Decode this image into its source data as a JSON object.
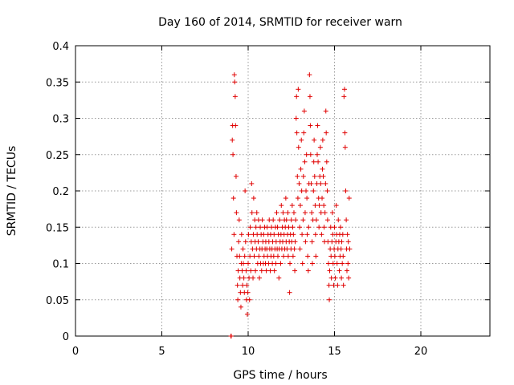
{
  "chart_data": {
    "type": "scatter",
    "title": "Day 160 of 2014, SRMTID for receiver warn",
    "xlabel": "GPS time / hours",
    "ylabel": "SRMTID / TECUs",
    "xlim": [
      0,
      24
    ],
    "ylim": [
      0,
      0.4
    ],
    "xticks": [
      0,
      5,
      10,
      15,
      20
    ],
    "yticks": [
      0,
      0.05,
      0.1,
      0.15,
      0.2,
      0.25,
      0.3,
      0.35,
      0.4
    ],
    "grid": true,
    "legend": "none",
    "marker": "+",
    "color": "#e00000",
    "series": [
      {
        "name": "SRMTID",
        "points": [
          [
            9.0,
            0.0
          ],
          [
            9.02,
            0.0
          ],
          [
            9.05,
            0.12
          ],
          [
            9.08,
            0.27
          ],
          [
            9.1,
            0.29
          ],
          [
            9.12,
            0.25
          ],
          [
            9.15,
            0.19
          ],
          [
            9.18,
            0.14
          ],
          [
            9.2,
            0.36
          ],
          [
            9.22,
            0.35
          ],
          [
            9.25,
            0.33
          ],
          [
            9.27,
            0.29
          ],
          [
            9.3,
            0.22
          ],
          [
            9.32,
            0.17
          ],
          [
            9.35,
            0.11
          ],
          [
            9.38,
            0.07
          ],
          [
            9.4,
            0.05
          ],
          [
            9.42,
            0.09
          ],
          [
            9.45,
            0.13
          ],
          [
            9.48,
            0.16
          ],
          [
            9.5,
            0.11
          ],
          [
            9.52,
            0.08
          ],
          [
            9.55,
            0.06
          ],
          [
            9.58,
            0.04
          ],
          [
            9.6,
            0.1
          ],
          [
            9.62,
            0.14
          ],
          [
            9.65,
            0.09
          ],
          [
            9.68,
            0.07
          ],
          [
            9.7,
            0.12
          ],
          [
            9.72,
            0.1
          ],
          [
            9.75,
            0.08
          ],
          [
            9.78,
            0.06
          ],
          [
            9.8,
            0.11
          ],
          [
            9.82,
            0.2
          ],
          [
            9.85,
            0.13
          ],
          [
            9.88,
            0.09
          ],
          [
            9.9,
            0.05
          ],
          [
            9.92,
            0.07
          ],
          [
            9.95,
            0.03
          ],
          [
            9.98,
            0.06
          ],
          [
            10.0,
            0.1
          ],
          [
            10.02,
            0.14
          ],
          [
            10.05,
            0.08
          ],
          [
            10.08,
            0.05
          ],
          [
            10.1,
            0.11
          ],
          [
            10.12,
            0.15
          ],
          [
            10.15,
            0.09
          ],
          [
            10.18,
            0.13
          ],
          [
            10.2,
            0.21
          ],
          [
            10.22,
            0.17
          ],
          [
            10.25,
            0.12
          ],
          [
            10.28,
            0.08
          ],
          [
            10.3,
            0.14
          ],
          [
            10.32,
            0.19
          ],
          [
            10.35,
            0.11
          ],
          [
            10.38,
            0.16
          ],
          [
            10.4,
            0.13
          ],
          [
            10.42,
            0.09
          ],
          [
            10.45,
            0.15
          ],
          [
            10.48,
            0.12
          ],
          [
            10.5,
            0.17
          ],
          [
            10.52,
            0.14
          ],
          [
            10.55,
            0.1
          ],
          [
            10.58,
            0.13
          ],
          [
            10.6,
            0.16
          ],
          [
            10.62,
            0.11
          ],
          [
            10.65,
            0.08
          ],
          [
            10.68,
            0.12
          ],
          [
            10.7,
            0.15
          ],
          [
            10.72,
            0.1
          ],
          [
            10.75,
            0.14
          ],
          [
            10.78,
            0.09
          ],
          [
            10.8,
            0.12
          ],
          [
            10.82,
            0.16
          ],
          [
            10.85,
            0.13
          ],
          [
            10.88,
            0.1
          ],
          [
            10.9,
            0.14
          ],
          [
            10.92,
            0.11
          ],
          [
            10.95,
            0.15
          ],
          [
            10.98,
            0.12
          ],
          [
            11.0,
            0.1
          ],
          [
            11.02,
            0.13
          ],
          [
            11.05,
            0.09
          ],
          [
            11.08,
            0.12
          ],
          [
            11.1,
            0.15
          ],
          [
            11.12,
            0.11
          ],
          [
            11.15,
            0.14
          ],
          [
            11.18,
            0.1
          ],
          [
            11.2,
            0.13
          ],
          [
            11.22,
            0.16
          ],
          [
            11.25,
            0.12
          ],
          [
            11.28,
            0.09
          ],
          [
            11.3,
            0.14
          ],
          [
            11.32,
            0.11
          ],
          [
            11.35,
            0.15
          ],
          [
            11.38,
            0.12
          ],
          [
            11.4,
            0.1
          ],
          [
            11.42,
            0.13
          ],
          [
            11.45,
            0.16
          ],
          [
            11.48,
            0.11
          ],
          [
            11.5,
            0.14
          ],
          [
            11.52,
            0.09
          ],
          [
            11.55,
            0.12
          ],
          [
            11.58,
            0.15
          ],
          [
            11.6,
            0.1
          ],
          [
            11.62,
            0.13
          ],
          [
            11.65,
            0.17
          ],
          [
            11.68,
            0.12
          ],
          [
            11.7,
            0.15
          ],
          [
            11.72,
            0.11
          ],
          [
            11.75,
            0.14
          ],
          [
            11.78,
            0.08
          ],
          [
            11.8,
            0.12
          ],
          [
            11.82,
            0.16
          ],
          [
            11.85,
            0.13
          ],
          [
            11.88,
            0.1
          ],
          [
            11.9,
            0.14
          ],
          [
            11.92,
            0.18
          ],
          [
            11.95,
            0.12
          ],
          [
            11.98,
            0.15
          ],
          [
            12.0,
            0.13
          ],
          [
            12.02,
            0.17
          ],
          [
            12.05,
            0.11
          ],
          [
            12.08,
            0.14
          ],
          [
            12.1,
            0.16
          ],
          [
            12.12,
            0.12
          ],
          [
            12.15,
            0.15
          ],
          [
            12.18,
            0.19
          ],
          [
            12.2,
            0.13
          ],
          [
            12.22,
            0.16
          ],
          [
            12.25,
            0.12
          ],
          [
            12.28,
            0.14
          ],
          [
            12.3,
            0.17
          ],
          [
            12.32,
            0.11
          ],
          [
            12.35,
            0.15
          ],
          [
            12.38,
            0.13
          ],
          [
            12.4,
            0.06
          ],
          [
            12.42,
            0.1
          ],
          [
            12.45,
            0.14
          ],
          [
            12.48,
            0.12
          ],
          [
            12.5,
            0.16
          ],
          [
            12.52,
            0.13
          ],
          [
            12.55,
            0.18
          ],
          [
            12.58,
            0.15
          ],
          [
            12.6,
            0.11
          ],
          [
            12.62,
            0.14
          ],
          [
            12.65,
            0.17
          ],
          [
            12.68,
            0.12
          ],
          [
            12.7,
            0.09
          ],
          [
            12.72,
            0.13
          ],
          [
            12.75,
            0.16
          ],
          [
            12.78,
            0.3
          ],
          [
            12.8,
            0.33
          ],
          [
            12.82,
            0.28
          ],
          [
            12.85,
            0.22
          ],
          [
            12.88,
            0.19
          ],
          [
            12.9,
            0.34
          ],
          [
            12.92,
            0.26
          ],
          [
            12.95,
            0.21
          ],
          [
            12.98,
            0.15
          ],
          [
            13.0,
            0.12
          ],
          [
            13.02,
            0.18
          ],
          [
            13.05,
            0.23
          ],
          [
            13.08,
            0.27
          ],
          [
            13.1,
            0.2
          ],
          [
            13.12,
            0.14
          ],
          [
            13.15,
            0.1
          ],
          [
            13.18,
            0.16
          ],
          [
            13.2,
            0.22
          ],
          [
            13.22,
            0.28
          ],
          [
            13.25,
            0.31
          ],
          [
            13.28,
            0.24
          ],
          [
            13.3,
            0.17
          ],
          [
            13.32,
            0.13
          ],
          [
            13.35,
            0.2
          ],
          [
            13.38,
            0.25
          ],
          [
            13.4,
            0.19
          ],
          [
            13.42,
            0.14
          ],
          [
            13.45,
            0.11
          ],
          [
            13.48,
            0.09
          ],
          [
            13.5,
            0.15
          ],
          [
            13.52,
            0.21
          ],
          [
            13.55,
            0.36
          ],
          [
            13.58,
            0.33
          ],
          [
            13.6,
            0.29
          ],
          [
            13.62,
            0.25
          ],
          [
            13.65,
            0.21
          ],
          [
            13.68,
            0.17
          ],
          [
            13.7,
            0.13
          ],
          [
            13.72,
            0.1
          ],
          [
            13.75,
            0.16
          ],
          [
            13.78,
            0.2
          ],
          [
            13.8,
            0.24
          ],
          [
            13.82,
            0.27
          ],
          [
            13.85,
            0.22
          ],
          [
            13.88,
            0.18
          ],
          [
            13.9,
            0.14
          ],
          [
            13.92,
            0.11
          ],
          [
            13.95,
            0.16
          ],
          [
            13.98,
            0.21
          ],
          [
            14.0,
            0.25
          ],
          [
            14.02,
            0.29
          ],
          [
            14.05,
            0.24
          ],
          [
            14.08,
            0.19
          ],
          [
            14.1,
            0.15
          ],
          [
            14.12,
            0.18
          ],
          [
            14.15,
            0.22
          ],
          [
            14.18,
            0.26
          ],
          [
            14.2,
            0.21
          ],
          [
            14.22,
            0.17
          ],
          [
            14.25,
            0.14
          ],
          [
            14.28,
            0.19
          ],
          [
            14.3,
            0.23
          ],
          [
            14.32,
            0.27
          ],
          [
            14.35,
            0.22
          ],
          [
            14.38,
            0.18
          ],
          [
            14.4,
            0.15
          ],
          [
            14.42,
            0.13
          ],
          [
            14.45,
            0.17
          ],
          [
            14.48,
            0.21
          ],
          [
            14.5,
            0.31
          ],
          [
            14.52,
            0.28
          ],
          [
            14.55,
            0.24
          ],
          [
            14.58,
            0.2
          ],
          [
            14.6,
            0.16
          ],
          [
            14.62,
            0.13
          ],
          [
            14.65,
            0.1
          ],
          [
            14.68,
            0.07
          ],
          [
            14.7,
            0.05
          ],
          [
            14.72,
            0.09
          ],
          [
            14.75,
            0.12
          ],
          [
            14.78,
            0.15
          ],
          [
            14.8,
            0.11
          ],
          [
            14.82,
            0.08
          ],
          [
            14.85,
            0.13
          ],
          [
            14.88,
            0.17
          ],
          [
            14.9,
            0.14
          ],
          [
            14.92,
            0.1
          ],
          [
            14.95,
            0.07
          ],
          [
            14.98,
            0.12
          ],
          [
            15.0,
            0.15
          ],
          [
            15.02,
            0.11
          ],
          [
            15.05,
            0.08
          ],
          [
            15.08,
            0.13
          ],
          [
            15.1,
            0.18
          ],
          [
            15.12,
            0.14
          ],
          [
            15.15,
            0.1
          ],
          [
            15.18,
            0.07
          ],
          [
            15.2,
            0.12
          ],
          [
            15.22,
            0.16
          ],
          [
            15.25,
            0.13
          ],
          [
            15.28,
            0.09
          ],
          [
            15.3,
            0.14
          ],
          [
            15.32,
            0.11
          ],
          [
            15.35,
            0.15
          ],
          [
            15.38,
            0.12
          ],
          [
            15.4,
            0.08
          ],
          [
            15.42,
            0.13
          ],
          [
            15.45,
            0.1
          ],
          [
            15.48,
            0.14
          ],
          [
            15.5,
            0.11
          ],
          [
            15.52,
            0.07
          ],
          [
            15.55,
            0.33
          ],
          [
            15.58,
            0.34
          ],
          [
            15.6,
            0.28
          ],
          [
            15.62,
            0.26
          ],
          [
            15.65,
            0.2
          ],
          [
            15.68,
            0.16
          ],
          [
            15.7,
            0.12
          ],
          [
            15.72,
            0.09
          ],
          [
            15.75,
            0.14
          ],
          [
            15.78,
            0.1
          ],
          [
            15.8,
            0.13
          ],
          [
            15.82,
            0.08
          ],
          [
            15.85,
            0.19
          ],
          [
            15.88,
            0.12
          ]
        ]
      }
    ]
  }
}
